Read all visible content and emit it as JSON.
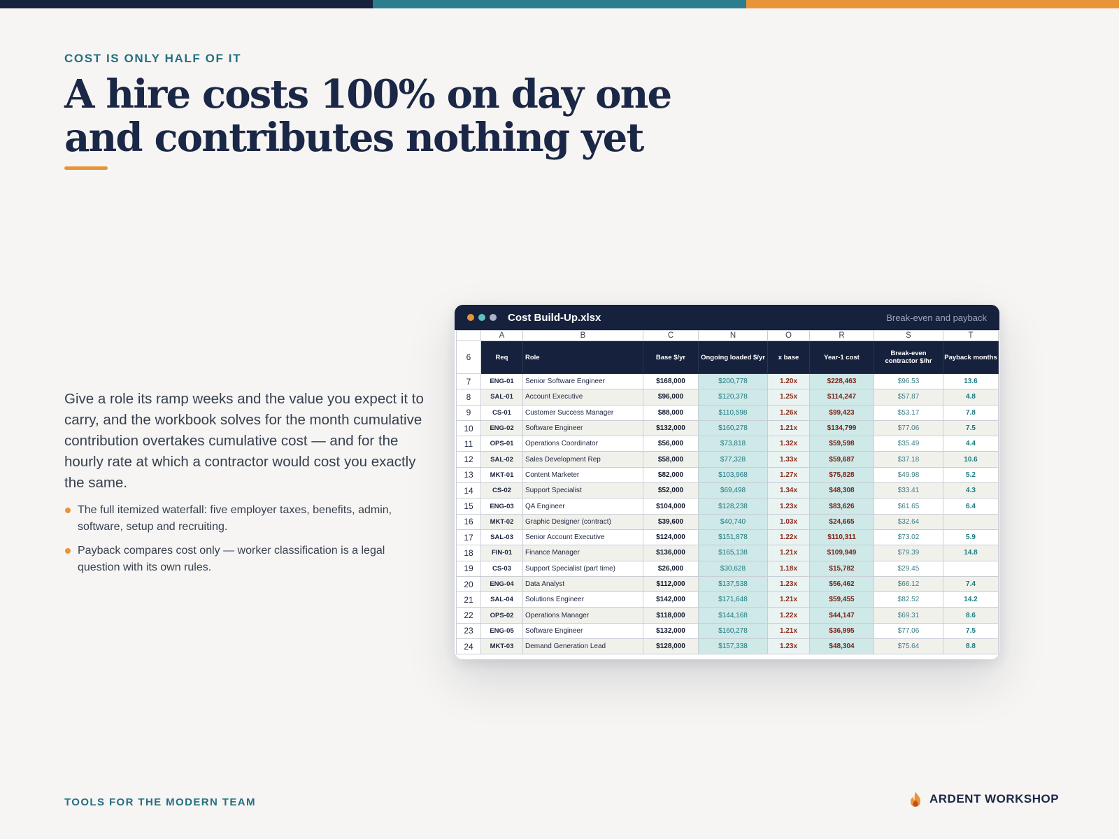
{
  "eyebrow": "COST IS ONLY HALF OF IT",
  "headline": {
    "line1": "A hire costs 100% on day one",
    "line2": "and contributes nothing yet"
  },
  "body": "Give a role its ramp weeks and the value you expect it to carry, and the workbook solves for the month cumulative contribution overtakes cumulative cost — and for the hourly rate at which a contractor would cost you exactly the same.",
  "bullets": [
    "The full itemized waterfall: five employer taxes, benefits, admin, software, setup and recruiting.",
    "Payback compares cost only — worker classification is a legal question with its own rules."
  ],
  "footer": {
    "tagline": "TOOLS FOR THE MODERN TEAM",
    "brand": "ARDENT WORKSHOP"
  },
  "colors": {
    "navy": "#16213d",
    "teal": "#2b7f8d",
    "orange": "#e8953a",
    "window_dots": [
      "#e8953a",
      "#5fc2c0",
      "#aab4c8"
    ]
  },
  "window": {
    "title": "Cost Build-Up.xlsx",
    "subtitle": "Break-even and payback",
    "column_letters": [
      "A",
      "B",
      "C",
      "N",
      "O",
      "R",
      "S",
      "T"
    ],
    "header_row_number": "6",
    "headers": [
      "Req",
      "Role",
      "Base $/yr",
      "Ongoing loaded $/yr",
      "x base",
      "Year-1 cost",
      "Break-even contractor $/hr",
      "Payback months"
    ],
    "rows": [
      {
        "n": "7",
        "req": "ENG-01",
        "role": "Senior Software Engineer",
        "base": "$168,000",
        "ongoing": "$200,778",
        "mult": "1.20x",
        "year1": "$228,463",
        "breakeven": "$96.53",
        "payback": "13.6"
      },
      {
        "n": "8",
        "req": "SAL-01",
        "role": "Account Executive",
        "base": "$96,000",
        "ongoing": "$120,378",
        "mult": "1.25x",
        "year1": "$114,247",
        "breakeven": "$57.87",
        "payback": "4.8"
      },
      {
        "n": "9",
        "req": "CS-01",
        "role": "Customer Success Manager",
        "base": "$88,000",
        "ongoing": "$110,598",
        "mult": "1.26x",
        "year1": "$99,423",
        "breakeven": "$53.17",
        "payback": "7.8"
      },
      {
        "n": "10",
        "req": "ENG-02",
        "role": "Software Engineer",
        "base": "$132,000",
        "ongoing": "$160,278",
        "mult": "1.21x",
        "year1": "$134,799",
        "breakeven": "$77.06",
        "payback": "7.5"
      },
      {
        "n": "11",
        "req": "OPS-01",
        "role": "Operations Coordinator",
        "base": "$56,000",
        "ongoing": "$73,818",
        "mult": "1.32x",
        "year1": "$59,598",
        "breakeven": "$35.49",
        "payback": "4.4"
      },
      {
        "n": "12",
        "req": "SAL-02",
        "role": "Sales Development Rep",
        "base": "$58,000",
        "ongoing": "$77,328",
        "mult": "1.33x",
        "year1": "$59,687",
        "breakeven": "$37.18",
        "payback": "10.6"
      },
      {
        "n": "13",
        "req": "MKT-01",
        "role": "Content Marketer",
        "base": "$82,000",
        "ongoing": "$103,968",
        "mult": "1.27x",
        "year1": "$75,828",
        "breakeven": "$49.98",
        "payback": "5.2"
      },
      {
        "n": "14",
        "req": "CS-02",
        "role": "Support Specialist",
        "base": "$52,000",
        "ongoing": "$69,498",
        "mult": "1.34x",
        "year1": "$48,308",
        "breakeven": "$33.41",
        "payback": "4.3"
      },
      {
        "n": "15",
        "req": "ENG-03",
        "role": "QA Engineer",
        "base": "$104,000",
        "ongoing": "$128,238",
        "mult": "1.23x",
        "year1": "$83,626",
        "breakeven": "$61.65",
        "payback": "6.4"
      },
      {
        "n": "16",
        "req": "MKT-02",
        "role": "Graphic Designer (contract)",
        "base": "$39,600",
        "ongoing": "$40,740",
        "mult": "1.03x",
        "year1": "$24,665",
        "breakeven": "$32.64",
        "payback": ""
      },
      {
        "n": "17",
        "req": "SAL-03",
        "role": "Senior Account Executive",
        "base": "$124,000",
        "ongoing": "$151,878",
        "mult": "1.22x",
        "year1": "$110,311",
        "breakeven": "$73.02",
        "payback": "5.9"
      },
      {
        "n": "18",
        "req": "FIN-01",
        "role": "Finance Manager",
        "base": "$136,000",
        "ongoing": "$165,138",
        "mult": "1.21x",
        "year1": "$109,949",
        "breakeven": "$79.39",
        "payback": "14.8"
      },
      {
        "n": "19",
        "req": "CS-03",
        "role": "Support Specialist (part time)",
        "base": "$26,000",
        "ongoing": "$30,628",
        "mult": "1.18x",
        "year1": "$15,782",
        "breakeven": "$29.45",
        "payback": ""
      },
      {
        "n": "20",
        "req": "ENG-04",
        "role": "Data Analyst",
        "base": "$112,000",
        "ongoing": "$137,538",
        "mult": "1.23x",
        "year1": "$56,462",
        "breakeven": "$66.12",
        "payback": "7.4"
      },
      {
        "n": "21",
        "req": "SAL-04",
        "role": "Solutions Engineer",
        "base": "$142,000",
        "ongoing": "$171,648",
        "mult": "1.21x",
        "year1": "$59,455",
        "breakeven": "$82.52",
        "payback": "14.2"
      },
      {
        "n": "22",
        "req": "OPS-02",
        "role": "Operations Manager",
        "base": "$118,000",
        "ongoing": "$144,168",
        "mult": "1.22x",
        "year1": "$44,147",
        "breakeven": "$69.31",
        "payback": "8.6"
      },
      {
        "n": "23",
        "req": "ENG-05",
        "role": "Software Engineer",
        "base": "$132,000",
        "ongoing": "$160,278",
        "mult": "1.21x",
        "year1": "$36,995",
        "breakeven": "$77.06",
        "payback": "7.5"
      },
      {
        "n": "24",
        "req": "MKT-03",
        "role": "Demand Generation Lead",
        "base": "$128,000",
        "ongoing": "$157,338",
        "mult": "1.23x",
        "year1": "$48,304",
        "breakeven": "$75.64",
        "payback": "8.8"
      }
    ]
  }
}
